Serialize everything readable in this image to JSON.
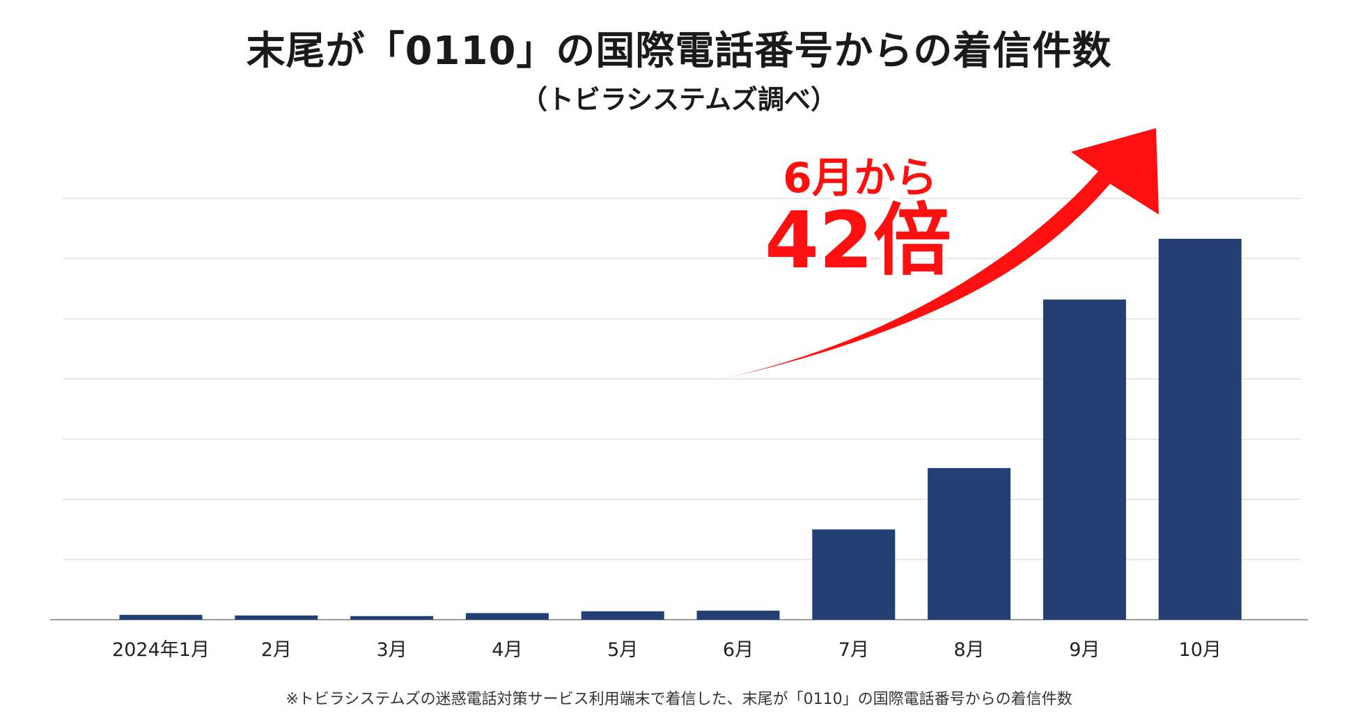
{
  "chart_data": {
    "type": "bar",
    "title": "末尾が「0110」の国際電話番号からの着信件数",
    "subtitle": "（トビラシステムズ調べ）",
    "categories": [
      "2024年1月",
      "2月",
      "3月",
      "4月",
      "5月",
      "6月",
      "7月",
      "8月",
      "9月",
      "10月"
    ],
    "values": [
      0.8,
      0.7,
      0.6,
      1.1,
      1.4,
      1.5,
      15.0,
      25.2,
      53.2,
      63.3
    ],
    "ylim": [
      0,
      70
    ],
    "y_gridlines": [
      10,
      20,
      30,
      40,
      50,
      60,
      70
    ],
    "xlabel": "",
    "ylabel": "",
    "grid": true,
    "legend": "none",
    "bar_color": "#243f73",
    "annotation": {
      "line1": "6月から",
      "line2": "42倍",
      "color": "#ff1010"
    },
    "footnote": "※トビラシステムズの迷惑電話対策サービス利用端末で着信した、末尾が「0110」の国際電話番号からの着信件数"
  }
}
